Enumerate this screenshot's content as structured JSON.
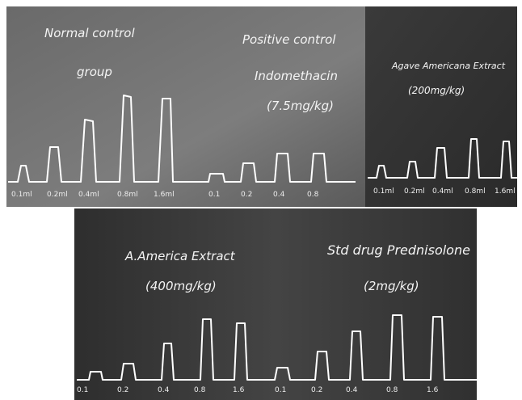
{
  "panels": [
    {
      "groups": [
        {
          "title_lines": [
            "Normal control",
            "group"
          ],
          "doses": [
            "0.1ml",
            "0.2ml",
            "0.4ml",
            "0.8ml",
            "1.6ml"
          ]
        },
        {
          "title_lines": [
            "Positive control",
            "Indomethacin",
            "(7.5mg/kg)"
          ],
          "doses": [
            "0.1",
            "0.2",
            "0.4",
            "0.8"
          ]
        }
      ]
    },
    {
      "groups": [
        {
          "title_lines": [
            "Agave Americana Extract",
            "(200mg/kg)"
          ],
          "doses": [
            "0.1ml",
            "0.2ml",
            "0.4ml",
            "0.8ml",
            "1.6ml"
          ]
        }
      ]
    },
    {
      "groups": [
        {
          "title_lines": [
            "A.America Extract",
            "(400mg/kg)"
          ],
          "doses": [
            "0.1",
            "0.2",
            "0.4",
            "0.8",
            "1.6"
          ]
        },
        {
          "title_lines": [
            "Std drug Prednisolone",
            "(2mg/kg)"
          ],
          "doses": [
            "0.1",
            "0.2",
            "0.4",
            "0.8",
            "1.6"
          ]
        }
      ]
    }
  ]
}
